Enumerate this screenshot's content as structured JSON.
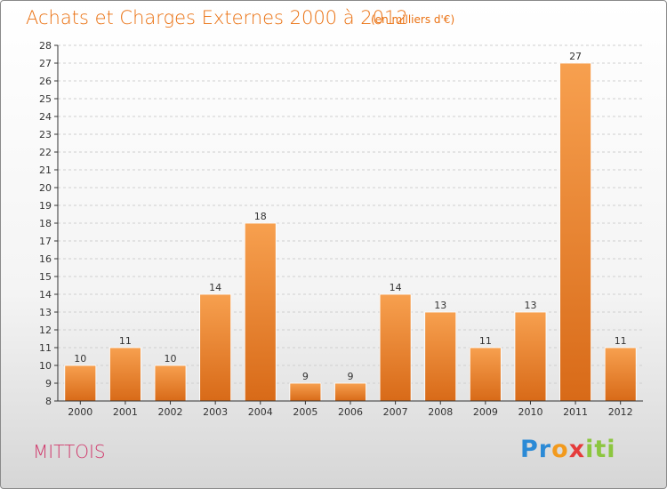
{
  "header": {
    "title": "Achats et Charges Externes 2000 à 2012",
    "unit": "(en milliers d'€)"
  },
  "footer": {
    "town": "MITTOIS",
    "logo": {
      "letters": [
        "P",
        "r",
        "o",
        "x",
        "i",
        "t",
        "i"
      ],
      "colors": [
        "#2b8ad6",
        "#2b8ad6",
        "#f29a1d",
        "#e53b3b",
        "#8cc63f",
        "#8cc63f",
        "#8cc63f"
      ]
    }
  },
  "colors": {
    "title": "#ea7010",
    "town": "#d0386b",
    "bar_light": "#f7a04f",
    "bar_dark": "#d86a18",
    "axis": "#333333",
    "grid": "#cfcfcf"
  },
  "chart_data": {
    "type": "bar",
    "categories": [
      "2000",
      "2001",
      "2002",
      "2003",
      "2004",
      "2005",
      "2006",
      "2007",
      "2008",
      "2009",
      "2010",
      "2011",
      "2012"
    ],
    "values": [
      10,
      11,
      10,
      14,
      18,
      9,
      9,
      14,
      13,
      11,
      13,
      27,
      11
    ],
    "ylim": [
      8,
      28
    ],
    "yticks": [
      8,
      9,
      10,
      11,
      12,
      13,
      14,
      15,
      16,
      17,
      18,
      19,
      20,
      21,
      22,
      23,
      24,
      25,
      26,
      27,
      28
    ],
    "grid": true,
    "data_labels": true
  }
}
